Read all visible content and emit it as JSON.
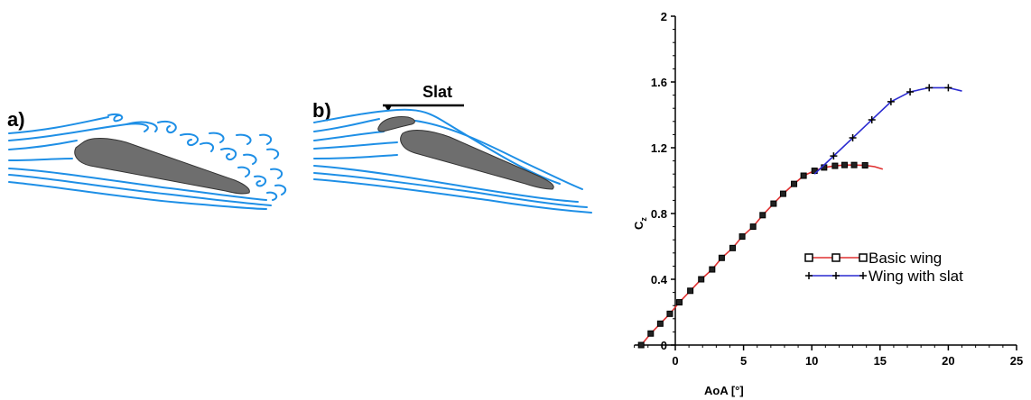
{
  "panels": {
    "a_label": "a)",
    "b_label": "b)",
    "slat_label": "Slat"
  },
  "colors": {
    "flow_lines": "#1e8fe6",
    "airfoil": "#6e6e6e",
    "basic_wing": "#e03030",
    "wing_with_slat": "#2a2ad0"
  },
  "chart_data": {
    "type": "line",
    "xlabel": "AoA [°]",
    "ylabel": "C",
    "ylabel_subscript": "z",
    "xlim": [
      -3,
      25
    ],
    "ylim": [
      0,
      2
    ],
    "xticks": [
      0,
      5,
      10,
      15,
      20,
      25
    ],
    "yticks": [
      0,
      0.4,
      0.8,
      1.2,
      1.6,
      2
    ],
    "ytick_labels": [
      "0",
      "0.4",
      "0.8",
      "1.2",
      "1.6",
      "2"
    ],
    "grid": false,
    "legend_position": "lower-right",
    "series": [
      {
        "name": "Basic wing",
        "color": "#e03030",
        "marker": "square",
        "x": [
          -2.5,
          -1.8,
          -1.1,
          -0.4,
          0.3,
          1.1,
          1.9,
          2.7,
          3.4,
          4.2,
          4.9,
          5.7,
          6.4,
          7.2,
          7.9,
          8.7,
          9.4,
          10.2,
          10.9,
          11.7,
          12.4,
          13.1,
          13.9,
          14.6,
          15.2
        ],
        "y": [
          0.0,
          0.07,
          0.13,
          0.19,
          0.26,
          0.33,
          0.4,
          0.46,
          0.53,
          0.59,
          0.66,
          0.72,
          0.79,
          0.86,
          0.92,
          0.98,
          1.03,
          1.06,
          1.08,
          1.09,
          1.095,
          1.095,
          1.093,
          1.085,
          1.07
        ],
        "marker_x": [
          -2.5,
          -1.8,
          -1.1,
          -0.4,
          0.3,
          1.1,
          1.9,
          2.7,
          3.4,
          4.2,
          4.9,
          5.7,
          6.4,
          7.2,
          7.9,
          8.7,
          9.4,
          10.2,
          10.9,
          11.7,
          12.4,
          13.1,
          13.9
        ],
        "marker_y": [
          0.0,
          0.07,
          0.13,
          0.19,
          0.26,
          0.33,
          0.4,
          0.46,
          0.53,
          0.59,
          0.66,
          0.72,
          0.79,
          0.86,
          0.92,
          0.98,
          1.03,
          1.06,
          1.08,
          1.09,
          1.095,
          1.095,
          1.093
        ]
      },
      {
        "name": "Wing with slat",
        "color": "#2a2ad0",
        "marker": "plus",
        "x": [
          10.2,
          11.6,
          13.0,
          14.4,
          15.8,
          17.2,
          18.6,
          20.0,
          21.0
        ],
        "y": [
          1.04,
          1.15,
          1.26,
          1.37,
          1.48,
          1.54,
          1.565,
          1.565,
          1.545
        ],
        "marker_x": [
          11.6,
          13.0,
          14.4,
          15.8,
          17.2,
          18.6,
          20.0
        ],
        "marker_y": [
          1.15,
          1.26,
          1.37,
          1.48,
          1.54,
          1.565,
          1.565
        ]
      }
    ]
  }
}
